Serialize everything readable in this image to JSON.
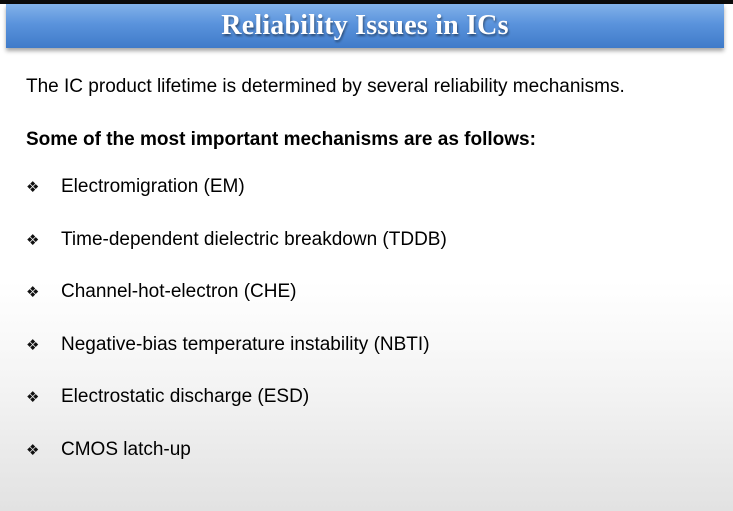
{
  "slide": {
    "title": "Reliability Issues in ICs",
    "intro": "The IC product lifetime is determined by several reliability mechanisms.",
    "subheading": "Some of the most important mechanisms are as follows:",
    "bullet_icon": "four-diamond-bullet-icon",
    "bullet_glyph": "❖",
    "mechanisms": [
      "Electromigration (EM)",
      "Time-dependent dielectric breakdown (TDDB)",
      "Channel-hot-electron (CHE)",
      "Negative-bias temperature instability (NBTI)",
      "Electrostatic discharge (ESD)",
      "CMOS latch-up"
    ]
  },
  "colors": {
    "title_bar": "#5a93dc",
    "title_text": "#ffffff",
    "body_text": "#000000"
  }
}
